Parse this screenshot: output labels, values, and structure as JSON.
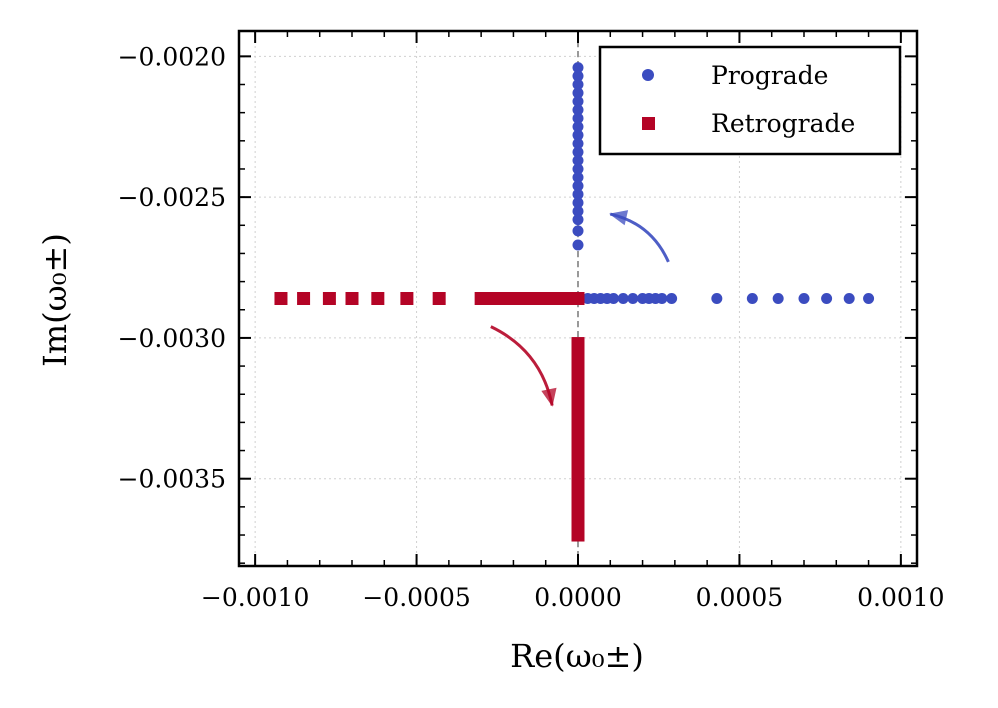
{
  "chart_data": {
    "type": "scatter",
    "title": "",
    "xlabel": "Re(ω₀±)",
    "ylabel": "Im(ω₀±)",
    "xlim": [
      -0.00105,
      0.00105
    ],
    "ylim": [
      -0.00381,
      -0.00191
    ],
    "grid": true,
    "legend_position": "top-right",
    "x_ticks": [
      -0.001,
      -0.0005,
      0.0,
      0.0005,
      0.001
    ],
    "x_tick_labels": [
      "−0.0010",
      "−0.0005",
      "0.0000",
      "0.0005",
      "0.0010"
    ],
    "y_ticks": [
      -0.002,
      -0.0025,
      -0.003,
      -0.0035
    ],
    "y_tick_labels": [
      "−0.0020",
      "−0.0025",
      "−0.0030",
      "−0.0035"
    ],
    "series": [
      {
        "name": "Prograde",
        "marker": "circle",
        "color": "#3b4cc0",
        "points": [
          [
            0.0,
            -0.00204
          ],
          [
            0.0,
            -0.00207
          ],
          [
            0.0,
            -0.0021
          ],
          [
            0.0,
            -0.00213
          ],
          [
            0.0,
            -0.00216
          ],
          [
            0.0,
            -0.00219
          ],
          [
            0.0,
            -0.00222
          ],
          [
            0.0,
            -0.00225
          ],
          [
            0.0,
            -0.00228
          ],
          [
            0.0,
            -0.00231
          ],
          [
            0.0,
            -0.00234
          ],
          [
            0.0,
            -0.00237
          ],
          [
            0.0,
            -0.0024
          ],
          [
            0.0,
            -0.00243
          ],
          [
            0.0,
            -0.00246
          ],
          [
            0.0,
            -0.00249
          ],
          [
            0.0,
            -0.00252
          ],
          [
            0.0,
            -0.00255
          ],
          [
            0.0,
            -0.00258
          ],
          [
            0.0,
            -0.00262
          ],
          [
            0.0,
            -0.00267
          ],
          [
            0.0,
            -0.00286
          ],
          [
            1e-05,
            -0.00286
          ],
          [
            3e-05,
            -0.00286
          ],
          [
            5e-05,
            -0.00286
          ],
          [
            7e-05,
            -0.00286
          ],
          [
            9e-05,
            -0.00286
          ],
          [
            0.00011,
            -0.00286
          ],
          [
            0.00014,
            -0.00286
          ],
          [
            0.00017,
            -0.00286
          ],
          [
            0.0002,
            -0.00286
          ],
          [
            0.00022,
            -0.00286
          ],
          [
            0.00024,
            -0.00286
          ],
          [
            0.00026,
            -0.00286
          ],
          [
            0.00029,
            -0.00286
          ],
          [
            0.00043,
            -0.00286
          ],
          [
            0.00054,
            -0.00286
          ],
          [
            0.00062,
            -0.00286
          ],
          [
            0.0007,
            -0.00286
          ],
          [
            0.00077,
            -0.00286
          ],
          [
            0.00084,
            -0.00286
          ],
          [
            0.0009,
            -0.00286
          ]
        ]
      },
      {
        "name": "Retrograde",
        "marker": "square",
        "color": "#b40426",
        "points": [
          [
            -0.00092,
            -0.00286
          ],
          [
            -0.00085,
            -0.00286
          ],
          [
            -0.00077,
            -0.00286
          ],
          [
            -0.0007,
            -0.00286
          ],
          [
            -0.00062,
            -0.00286
          ],
          [
            -0.00053,
            -0.00286
          ],
          [
            -0.00043,
            -0.00286
          ],
          [
            -0.0003,
            -0.00286
          ],
          [
            -0.00028,
            -0.00286
          ],
          [
            -0.00026,
            -0.00286
          ],
          [
            -0.00024,
            -0.00286
          ],
          [
            -0.00022,
            -0.00286
          ],
          [
            -0.0002,
            -0.00286
          ],
          [
            -0.00018,
            -0.00286
          ],
          [
            -0.00016,
            -0.00286
          ],
          [
            -0.00014,
            -0.00286
          ],
          [
            -0.00012,
            -0.00286
          ],
          [
            -0.0001,
            -0.00286
          ],
          [
            -8e-05,
            -0.00286
          ],
          [
            -6e-05,
            -0.00286
          ],
          [
            -4e-05,
            -0.00286
          ],
          [
            -2e-05,
            -0.00286
          ],
          [
            0.0,
            -0.00286
          ],
          [
            0.0,
            -0.00302
          ],
          [
            0.0,
            -0.00305
          ],
          [
            0.0,
            -0.00308
          ],
          [
            0.0,
            -0.00311
          ],
          [
            0.0,
            -0.00314
          ],
          [
            0.0,
            -0.00317
          ],
          [
            0.0,
            -0.0032
          ],
          [
            0.0,
            -0.00323
          ],
          [
            0.0,
            -0.00326
          ],
          [
            0.0,
            -0.00329
          ],
          [
            0.0,
            -0.00332
          ],
          [
            0.0,
            -0.00335
          ],
          [
            0.0,
            -0.00338
          ],
          [
            0.0,
            -0.00341
          ],
          [
            0.0,
            -0.00344
          ],
          [
            0.0,
            -0.00347
          ],
          [
            0.0,
            -0.0035
          ],
          [
            0.0,
            -0.00353
          ],
          [
            0.0,
            -0.00356
          ],
          [
            0.0,
            -0.00359
          ],
          [
            0.0,
            -0.00362
          ],
          [
            0.0,
            -0.00365
          ],
          [
            0.0,
            -0.00368
          ],
          [
            0.0,
            -0.0037
          ]
        ]
      }
    ],
    "annotations": [
      {
        "type": "arrow",
        "color": "#3b4cc0",
        "from": [
          0.00028,
          -0.00273
        ],
        "to": [
          0.0001,
          -0.00256
        ]
      },
      {
        "type": "arrow",
        "color": "#b40426",
        "from": [
          -0.00027,
          -0.00296
        ],
        "to": [
          -8e-05,
          -0.00324
        ]
      }
    ],
    "reference_line": {
      "x": 0.0,
      "style": "dashed",
      "color": "#808080"
    }
  }
}
